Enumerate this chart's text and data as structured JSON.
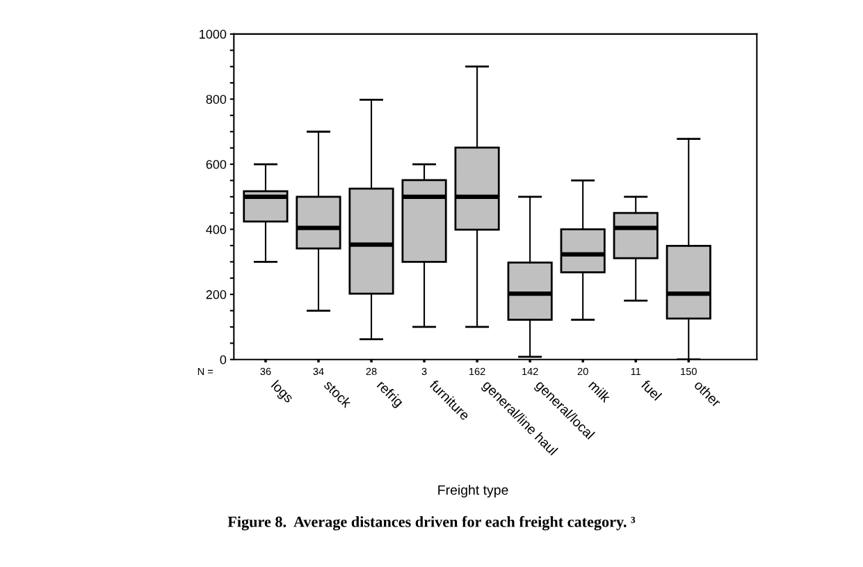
{
  "chart_data": {
    "type": "box",
    "title": "Figure 8.  Average distances driven for each freight category. ³",
    "xlabel": "Freight type",
    "categories": [
      "logs",
      "stock",
      "refrig",
      "furniture",
      "general/line haul",
      "general/local",
      "milk",
      "fuel",
      "other"
    ],
    "color": "#c0c0c0",
    "boxes": [
      {
        "low": 300,
        "q1": 424,
        "median": 500,
        "q3": 517,
        "high": 600
      },
      {
        "low": 150,
        "q1": 341,
        "median": 404,
        "q3": 500,
        "high": 700
      },
      {
        "low": 62,
        "q1": 202,
        "median": 353,
        "q3": 525,
        "high": 798
      },
      {
        "low": 100,
        "q1": 300,
        "median": 500,
        "q3": 551,
        "high": 600
      },
      {
        "low": 100,
        "q1": 399,
        "median": 500,
        "q3": 651,
        "high": 900
      },
      {
        "low": 8,
        "q1": 122,
        "median": 202,
        "q3": 298,
        "high": 500
      },
      {
        "low": 122,
        "q1": 268,
        "median": 323,
        "q3": 400,
        "high": 550
      },
      {
        "low": 181,
        "q1": 311,
        "median": 404,
        "q3": 450,
        "high": 500
      },
      {
        "low": 0,
        "q1": 126,
        "median": 202,
        "q3": 349,
        "high": 678
      }
    ],
    "ylim": [
      0,
      1000
    ],
    "yticks": [
      0,
      {
        "value": 50,
        "label": null
      },
      {
        "value": 100,
        "label": null
      },
      {
        "value": 150,
        "label": null
      },
      200,
      {
        "value": 250,
        "label": null
      },
      {
        "value": 300,
        "label": null
      },
      {
        "value": 350,
        "label": null
      },
      400,
      {
        "value": 450,
        "label": null
      },
      {
        "value": 500,
        "label": null
      },
      {
        "value": 550,
        "label": null
      },
      600,
      {
        "value": 650,
        "label": null
      },
      {
        "value": 700,
        "label": null
      },
      {
        "value": 750,
        "label": null
      },
      800,
      {
        "value": 850,
        "label": null
      },
      {
        "value": 900,
        "label": null
      },
      {
        "value": 950,
        "label": null
      },
      1000
    ],
    "grid": false,
    "annotations": [
      "N =",
      "36",
      "34",
      "28",
      "3",
      "162",
      "142",
      "20",
      "11",
      "150"
    ]
  }
}
